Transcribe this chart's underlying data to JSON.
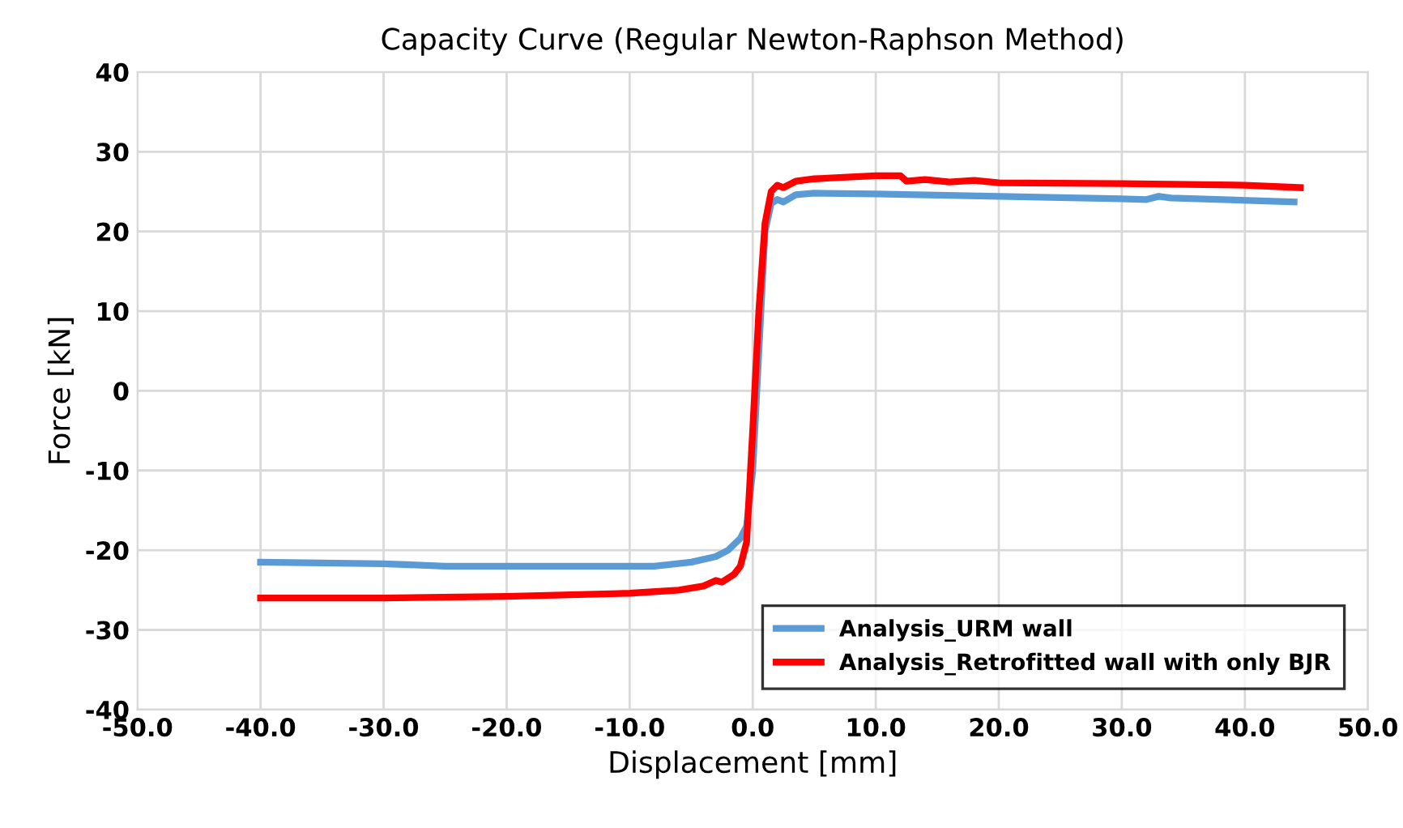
{
  "chart_data": {
    "type": "line",
    "title": "Capacity Curve (Regular Newton-Raphson Method)",
    "xlabel": "Displacement [mm]",
    "ylabel": "Force [kN]",
    "series": [
      {
        "name": "Analysis_URM wall",
        "color": "#5b9bd5",
        "x": [
          -40,
          -30,
          -25,
          -10,
          -8,
          -5,
          -3,
          -2,
          -1,
          -0.5,
          0,
          0.5,
          1,
          1.5,
          2,
          2.5,
          3.5,
          5,
          10,
          20,
          30,
          32,
          33,
          34,
          44
        ],
        "values": [
          -21.5,
          -21.7,
          -22,
          -22,
          -22,
          -21.5,
          -20.8,
          -20,
          -18.5,
          -17,
          -10,
          5,
          20,
          23.5,
          24,
          23.7,
          24.6,
          24.8,
          24.7,
          24.4,
          24.1,
          24.0,
          24.4,
          24.2,
          23.7
        ]
      },
      {
        "name": "Analysis_Retrofitted wall with only BJR",
        "color": "#ff0000",
        "x": [
          -40,
          -30,
          -20,
          -10,
          -6,
          -4,
          -3,
          -2.5,
          -1.5,
          -1,
          -0.5,
          0,
          0.5,
          1,
          1.5,
          2,
          2.5,
          3.5,
          5,
          10,
          12,
          12.5,
          14,
          16,
          18,
          20,
          30,
          40,
          44.5
        ],
        "values": [
          -26,
          -26,
          -25.8,
          -25.4,
          -25,
          -24.5,
          -23.8,
          -24,
          -23,
          -22,
          -19,
          -5,
          10,
          21,
          25,
          25.8,
          25.5,
          26.3,
          26.6,
          27,
          27,
          26.3,
          26.5,
          26.2,
          26.4,
          26.1,
          26,
          25.8,
          25.5
        ]
      }
    ],
    "xlim": [
      -50,
      50
    ],
    "xticks": [
      {
        "value": -50,
        "label": "-50.0"
      },
      {
        "value": -40,
        "label": "-40.0"
      },
      {
        "value": -30,
        "label": "-30.0"
      },
      {
        "value": -20,
        "label": "-20.0"
      },
      {
        "value": -10,
        "label": "-10.0"
      },
      {
        "value": 0,
        "label": "0.0"
      },
      {
        "value": 10,
        "label": "10.0"
      },
      {
        "value": 20,
        "label": "20.0"
      },
      {
        "value": 30,
        "label": "30.0"
      },
      {
        "value": 40,
        "label": "40.0"
      },
      {
        "value": 50,
        "label": "50.0"
      }
    ],
    "ylim": [
      -40,
      40
    ],
    "yticks": [
      -40,
      -30,
      -20,
      -10,
      0,
      10,
      20,
      30,
      40
    ],
    "grid": true,
    "legend": "bottom right",
    "marker": "none",
    "line_style": "solid"
  }
}
